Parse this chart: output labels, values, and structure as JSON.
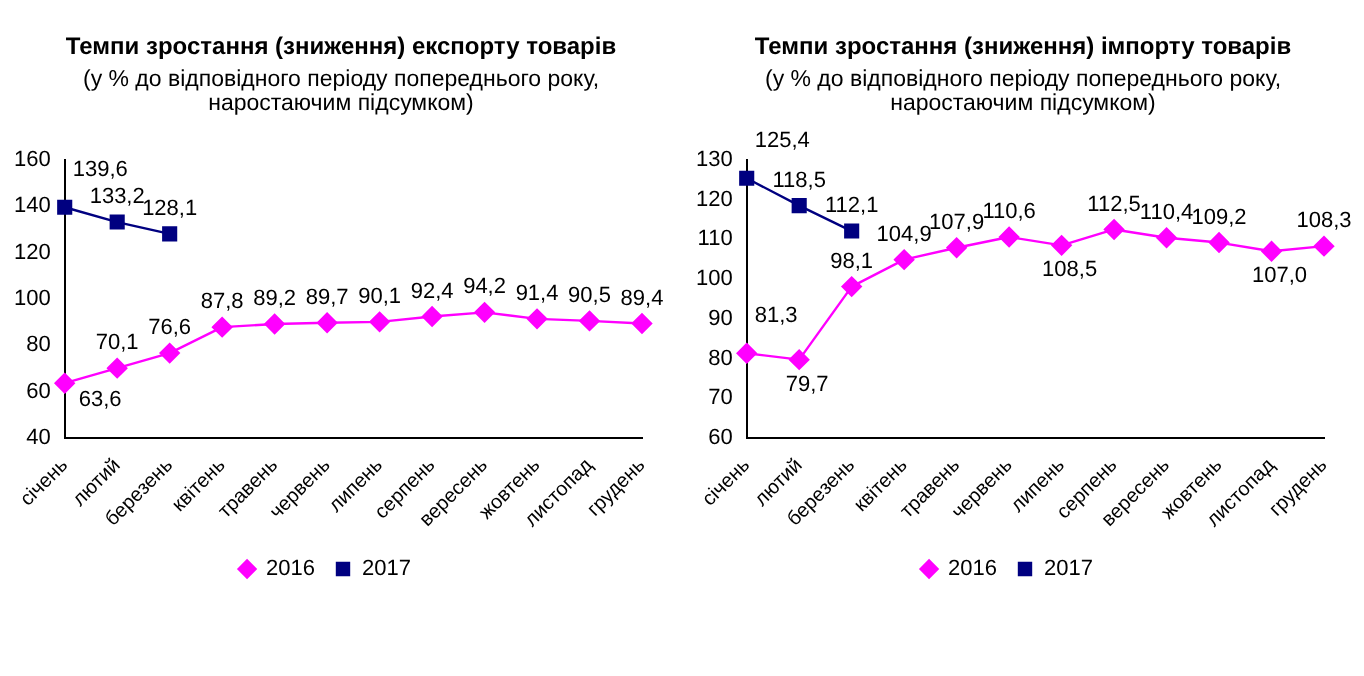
{
  "chart_data": [
    {
      "type": "line",
      "title": "Темпи зростання (зниження) експорту товарів",
      "subtitle": "(у % до відповідного періоду попереднього року, наростаючим підсумком)",
      "categories": [
        "січень",
        "лютий",
        "березень",
        "квітень",
        "травень",
        "червень",
        "липень",
        "серпень",
        "вересень",
        "жовтень",
        "листопад",
        "грудень"
      ],
      "series": [
        {
          "name": "2016",
          "color": "#ff00ff",
          "marker": "diamond",
          "values": [
            63.6,
            70.1,
            76.6,
            87.8,
            89.2,
            89.7,
            90.1,
            92.4,
            94.2,
            91.4,
            90.5,
            89.4
          ],
          "value_labels": [
            "63,6",
            "70,1",
            "76,6",
            "87,8",
            "89,2",
            "89,7",
            "90,1",
            "92,4",
            "94,2",
            "91,4",
            "90,5",
            "89,4"
          ]
        },
        {
          "name": "2017",
          "color": "#000080",
          "marker": "square",
          "values": [
            139.6,
            133.2,
            128.1,
            null,
            null,
            null,
            null,
            null,
            null,
            null,
            null,
            null
          ],
          "value_labels": [
            "139,6",
            "133,2",
            "128,1",
            null,
            null,
            null,
            null,
            null,
            null,
            null,
            null,
            null
          ]
        }
      ],
      "ylim": [
        40,
        160
      ],
      "yticks": [
        40,
        60,
        80,
        100,
        120,
        140,
        160
      ],
      "grid": false,
      "legend": "bottom"
    },
    {
      "type": "line",
      "title": "Темпи зростання (зниження) імпорту товарів",
      "subtitle": "(у % до відповідного періоду попереднього року, наростаючим підсумком)",
      "categories": [
        "січень",
        "лютий",
        "березень",
        "квітень",
        "травень",
        "червень",
        "липень",
        "серпень",
        "вересень",
        "жовтень",
        "листопад",
        "грудень"
      ],
      "series": [
        {
          "name": "2016",
          "color": "#ff00ff",
          "marker": "diamond",
          "values": [
            81.3,
            79.7,
            98.1,
            104.9,
            107.9,
            110.6,
            108.5,
            112.5,
            110.4,
            109.2,
            107.0,
            108.3
          ],
          "value_labels": [
            "81,3",
            "79,7",
            "98,1",
            "104,9",
            "107,9",
            "110,6",
            "108,5",
            "112,5",
            "110,4",
            "109,2",
            "107,0",
            "108,3"
          ]
        },
        {
          "name": "2017",
          "color": "#000080",
          "marker": "square",
          "values": [
            125.4,
            118.5,
            112.1,
            null,
            null,
            null,
            null,
            null,
            null,
            null,
            null,
            null
          ],
          "value_labels": [
            "125,4",
            "118,5",
            "112,1",
            null,
            null,
            null,
            null,
            null,
            null,
            null,
            null,
            null
          ]
        }
      ],
      "ylim": [
        60,
        130
      ],
      "yticks": [
        60,
        70,
        80,
        90,
        100,
        110,
        120,
        130
      ],
      "grid": false,
      "legend": "bottom"
    }
  ]
}
